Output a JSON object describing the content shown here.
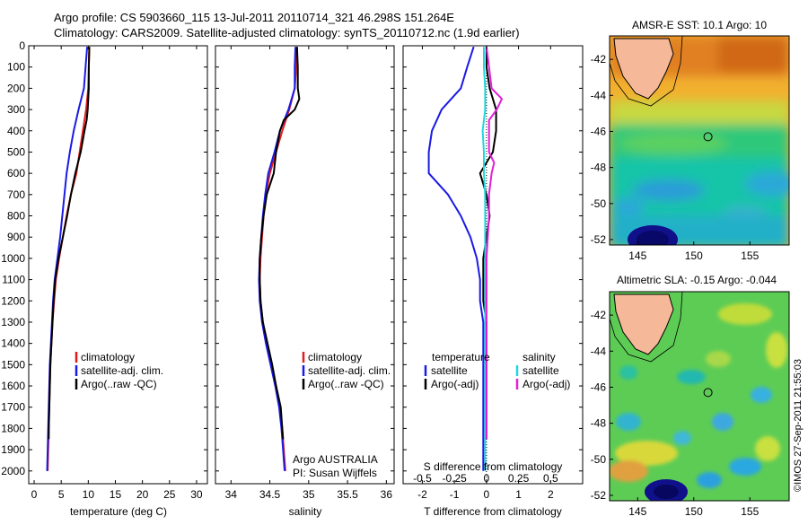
{
  "title": {
    "line1": "Argo profile: CS 5903660_115 13-Jul-2011 20110714_321 46.298S 151.264E",
    "line2": "Climatology: CARS2009. Satellite-adjusted climatology: synTS_20110712.nc (1.9d earlier)"
  },
  "colors": {
    "climatology": "#e41a1c",
    "satellite": "#1a1ae6",
    "argo": "#000000",
    "sat_s": "#22d6e0",
    "argo_s": "#e020d8"
  },
  "depth_axis": {
    "ticks": [
      0,
      100,
      200,
      300,
      400,
      500,
      600,
      700,
      800,
      900,
      1000,
      1100,
      1200,
      1300,
      1400,
      1500,
      1600,
      1700,
      1800,
      1900,
      2000
    ],
    "range": [
      0,
      2060
    ]
  },
  "chart_data": [
    {
      "type": "line",
      "id": "temperature",
      "xlabel": "temperature (deg C)",
      "xlim": [
        -1,
        32
      ],
      "xticks": [
        0,
        5,
        10,
        15,
        20,
        25,
        30
      ],
      "ylabel": "depth",
      "ylim": [
        0,
        2060
      ],
      "legend": [
        "climatology",
        "satellite-adj. clim.",
        "Argo(..raw -QC)"
      ],
      "series": [
        {
          "name": "climatology",
          "color": "#e41a1c",
          "depth": [
            5,
            100,
            200,
            300,
            400,
            500,
            600,
            700,
            800,
            900,
            1000,
            1100,
            1200,
            1300,
            1400,
            1500,
            1600,
            1700,
            1800,
            1900,
            2000
          ],
          "values": [
            10.2,
            10.1,
            10.0,
            9.6,
            9.0,
            8.4,
            7.8,
            6.8,
            6.0,
            5.3,
            4.6,
            4.0,
            3.7,
            3.4,
            3.2,
            3.0,
            2.9,
            2.8,
            2.7,
            2.6,
            2.5
          ]
        },
        {
          "name": "satellite-adj. clim.",
          "color": "#1a1ae6",
          "depth": [
            5,
            100,
            200,
            300,
            400,
            500,
            600,
            700,
            800,
            900,
            1000,
            1100,
            1200,
            1300,
            1400,
            1500,
            1600,
            1700,
            1800,
            1900,
            2000
          ],
          "values": [
            9.8,
            9.5,
            9.2,
            8.2,
            7.3,
            6.6,
            6.0,
            5.6,
            5.2,
            4.8,
            4.3,
            3.8,
            3.5,
            3.3,
            3.1,
            2.9,
            2.8,
            2.7,
            2.6,
            2.5,
            2.4
          ]
        },
        {
          "name": "Argo(..raw -QC)",
          "color": "#000000",
          "depth": [
            5,
            100,
            200,
            300,
            350,
            400,
            500,
            600,
            700,
            800,
            900,
            1000,
            1100,
            1200,
            1300,
            1400,
            1500,
            1600,
            1700,
            1800,
            1850
          ],
          "values": [
            10.2,
            10.1,
            10.1,
            9.9,
            9.7,
            9.3,
            8.6,
            7.6,
            6.8,
            6.1,
            5.3,
            4.5,
            3.9,
            3.6,
            3.4,
            3.2,
            3.0,
            2.9,
            2.8,
            2.7,
            2.7
          ]
        }
      ]
    },
    {
      "type": "line",
      "id": "salinity",
      "xlabel": "salinity",
      "xlim": [
        33.8,
        36.1
      ],
      "xticks": [
        34,
        34.5,
        35,
        35.5,
        36
      ],
      "ylabel": "depth",
      "ylim": [
        0,
        2060
      ],
      "legend": [
        "climatology",
        "satellite-adj. clim.",
        "Argo(..raw -QC)"
      ],
      "annotation": [
        "Argo AUSTRALIA",
        "PI: Susan Wijffels"
      ],
      "series": [
        {
          "name": "climatology",
          "color": "#e41a1c",
          "depth": [
            5,
            100,
            200,
            300,
            400,
            500,
            600,
            700,
            800,
            900,
            1000,
            1100,
            1200,
            1300,
            1400,
            1500,
            1600,
            1700,
            1800,
            1900,
            2000
          ],
          "values": [
            34.85,
            34.84,
            34.82,
            34.75,
            34.66,
            34.58,
            34.5,
            34.45,
            34.42,
            34.4,
            34.38,
            34.37,
            34.38,
            34.41,
            34.46,
            34.52,
            34.58,
            34.63,
            34.66,
            34.68,
            34.7
          ]
        },
        {
          "name": "satellite-adj. clim.",
          "color": "#1a1ae6",
          "depth": [
            5,
            100,
            200,
            300,
            400,
            500,
            600,
            700,
            800,
            900,
            1000,
            1100,
            1200,
            1300,
            1400,
            1500,
            1600,
            1700,
            1800,
            1900,
            2000
          ],
          "values": [
            34.83,
            34.82,
            34.82,
            34.74,
            34.63,
            34.56,
            34.48,
            34.44,
            34.41,
            34.39,
            34.37,
            34.36,
            34.37,
            34.4,
            34.45,
            34.51,
            34.57,
            34.62,
            34.65,
            34.67,
            34.69
          ]
        },
        {
          "name": "Argo(..raw -QC)",
          "color": "#000000",
          "depth": [
            5,
            100,
            200,
            250,
            300,
            350,
            400,
            500,
            600,
            700,
            800,
            900,
            1000,
            1100,
            1200,
            1300,
            1400,
            1500,
            1600,
            1700,
            1800,
            1850
          ],
          "values": [
            34.85,
            34.86,
            34.86,
            34.88,
            34.82,
            34.68,
            34.63,
            34.58,
            34.55,
            34.46,
            34.42,
            34.39,
            34.37,
            34.37,
            34.38,
            34.41,
            34.47,
            34.53,
            34.58,
            34.64,
            34.66,
            34.67
          ]
        }
      ]
    },
    {
      "type": "line",
      "id": "difference",
      "xlabel": "T difference from climatology",
      "xlabel_top": "S difference from climatology",
      "xlim": [
        -2.6,
        3.0
      ],
      "xticks": [
        -2,
        -1,
        0,
        1,
        2
      ],
      "s_ticks": [
        {
          "v": -0.5,
          "label": "-0.5"
        },
        {
          "v": -0.25,
          "label": "-0.25"
        },
        {
          "v": 0,
          "label": "0"
        },
        {
          "v": 0.25,
          "label": "0.25"
        },
        {
          "v": 0.5,
          "label": "0.5"
        }
      ],
      "s_scale": 4,
      "ylabel": "depth",
      "ylim": [
        0,
        2060
      ],
      "legend": {
        "temperature": [
          "satellite",
          "Argo(-adj)"
        ],
        "salinity": [
          "satellite",
          "Argo(-adj)"
        ],
        "temperature_title": "temperature",
        "salinity_title": "salinity"
      },
      "series": [
        {
          "name": "temperature satellite",
          "color": "#1a1ae6",
          "depth": [
            5,
            100,
            200,
            300,
            400,
            500,
            600,
            700,
            800,
            900,
            1000,
            1100,
            1200,
            1300,
            1400,
            1500,
            1600,
            1700,
            1800,
            1900,
            2000
          ],
          "values": [
            -0.4,
            -0.6,
            -0.8,
            -1.4,
            -1.7,
            -1.8,
            -1.8,
            -1.2,
            -0.8,
            -0.5,
            -0.3,
            -0.2,
            -0.2,
            -0.1,
            -0.1,
            -0.1,
            -0.1,
            -0.1,
            -0.1,
            -0.1,
            -0.1
          ]
        },
        {
          "name": "temperature Argo(-adj)",
          "color": "#000000",
          "depth": [
            5,
            100,
            200,
            300,
            400,
            500,
            600,
            700,
            800,
            900,
            1000,
            1100,
            1200,
            1300,
            1400,
            1500,
            1600,
            1700,
            1800,
            1850
          ],
          "values": [
            0.0,
            0.0,
            0.1,
            0.3,
            0.3,
            0.2,
            -0.2,
            0.0,
            0.1,
            0.0,
            -0.1,
            -0.1,
            -0.1,
            0.0,
            0.0,
            0.0,
            0.0,
            0.0,
            0.0,
            0.0
          ]
        },
        {
          "name": "salinity satellite",
          "color": "#22d6e0",
          "depth": [
            5,
            100,
            200,
            300,
            400,
            500,
            600,
            700,
            800,
            900,
            1000,
            1100,
            1200,
            1300,
            1400,
            1500,
            1600,
            1700,
            1800,
            1900,
            2000
          ],
          "values": [
            -0.02,
            -0.02,
            -0.01,
            -0.01,
            -0.03,
            -0.02,
            -0.02,
            -0.01,
            -0.01,
            -0.01,
            -0.01,
            -0.01,
            -0.01,
            -0.01,
            -0.01,
            -0.01,
            -0.01,
            -0.01,
            -0.01,
            -0.01,
            -0.01
          ]
        },
        {
          "name": "salinity Argo(-adj)",
          "color": "#e020d8",
          "depth": [
            5,
            100,
            200,
            250,
            300,
            350,
            400,
            500,
            550,
            600,
            700,
            800,
            900,
            1000,
            1100,
            1200,
            1300,
            1400,
            1500,
            1600,
            1700,
            1800,
            1850
          ],
          "values": [
            0.0,
            0.02,
            0.04,
            0.12,
            0.08,
            0.02,
            0.02,
            0.02,
            0.06,
            0.04,
            0.02,
            0.02,
            0.01,
            0.0,
            0.0,
            0.0,
            0.0,
            0.0,
            0.0,
            0.0,
            0.0,
            0.0,
            0.0
          ]
        }
      ]
    },
    {
      "type": "heatmap",
      "id": "sst_map",
      "title": "AMSR-E SST: 10.1 Argo: 10",
      "xticks": [
        145,
        150,
        155
      ],
      "yticks": [
        -42,
        -44,
        -46,
        -48,
        -50,
        -52
      ],
      "xlim": [
        142.5,
        158.5
      ],
      "ylim": [
        -52.3,
        -40.7
      ],
      "marker": {
        "lon": 151.264,
        "lat": -46.298
      }
    },
    {
      "type": "heatmap",
      "id": "sla_map",
      "title": "Altimetric SLA: -0.15 Argo: -0.044",
      "xticks": [
        145,
        150,
        155
      ],
      "yticks": [
        -42,
        -44,
        -46,
        -48,
        -50,
        -52
      ],
      "xlim": [
        142.5,
        158.5
      ],
      "ylim": [
        -52.3,
        -40.7
      ],
      "marker": {
        "lon": 151.264,
        "lat": -46.298
      }
    }
  ],
  "credit": "©IMOS 27-Sep-2011 21:55:03"
}
